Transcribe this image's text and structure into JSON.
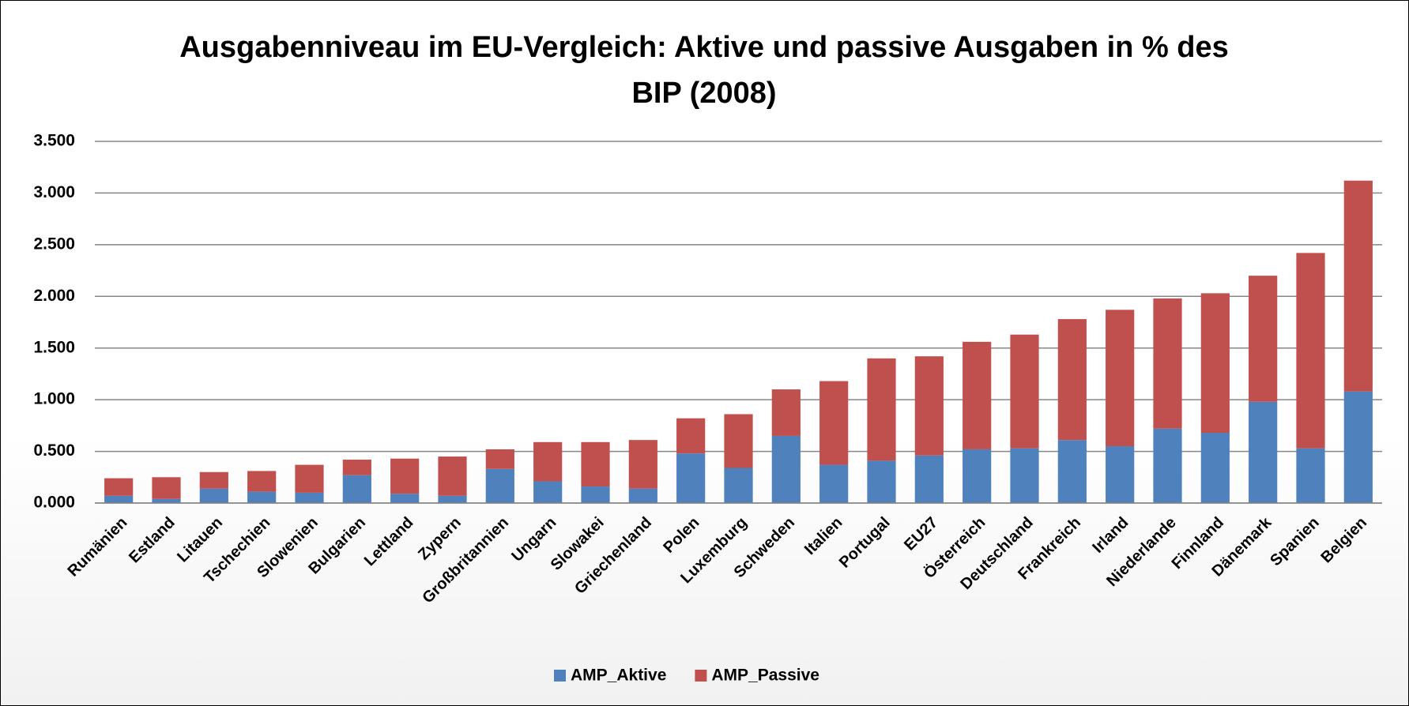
{
  "chart_data": {
    "type": "bar",
    "stacked": true,
    "title": "Ausgabenniveau im EU-Vergleich: Aktive und passive Ausgaben in % des BIP (2008)",
    "categories": [
      "Rumänien",
      "Estland",
      "Litauen",
      "Tschechien",
      "Slowenien",
      "Bulgarien",
      "Lettland",
      "Zypern",
      "Großbritannien",
      "Ungarn",
      "Slowakei",
      "Griechenland",
      "Polen",
      "Luxemburg",
      "Schweden",
      "Italien",
      "Portugal",
      "EU27",
      "Österreich",
      "Deutschland",
      "Frankreich",
      "Irland",
      "Niederlande",
      "Finnland",
      "Dänemark",
      "Spanien",
      "Belgien"
    ],
    "series": [
      {
        "name": "AMP_Aktive",
        "color": "#4f81bd",
        "values": [
          0.07,
          0.04,
          0.14,
          0.11,
          0.1,
          0.27,
          0.09,
          0.07,
          0.33,
          0.21,
          0.16,
          0.14,
          0.48,
          0.34,
          0.65,
          0.37,
          0.41,
          0.46,
          0.52,
          0.53,
          0.61,
          0.55,
          0.72,
          0.68,
          0.98,
          0.53,
          1.08
        ]
      },
      {
        "name": "AMP_Passive",
        "color": "#c0504d",
        "values": [
          0.17,
          0.21,
          0.16,
          0.2,
          0.27,
          0.15,
          0.34,
          0.38,
          0.19,
          0.38,
          0.43,
          0.47,
          0.34,
          0.52,
          0.45,
          0.81,
          0.99,
          0.96,
          1.04,
          1.1,
          1.17,
          1.32,
          1.26,
          1.35,
          1.22,
          1.89,
          2.04
        ]
      }
    ],
    "ylim": [
      0,
      3.5
    ],
    "yticks": [
      {
        "value": 0,
        "label": "0.000"
      },
      {
        "value": 0.5,
        "label": "0.500"
      },
      {
        "value": 1,
        "label": "1.000"
      },
      {
        "value": 1.5,
        "label": "1.500"
      },
      {
        "value": 2,
        "label": "2.000"
      },
      {
        "value": 2.5,
        "label": "2.500"
      },
      {
        "value": 3,
        "label": "3.000"
      },
      {
        "value": 3.5,
        "label": "3.500"
      }
    ],
    "grid": true,
    "legend": "bottom"
  }
}
